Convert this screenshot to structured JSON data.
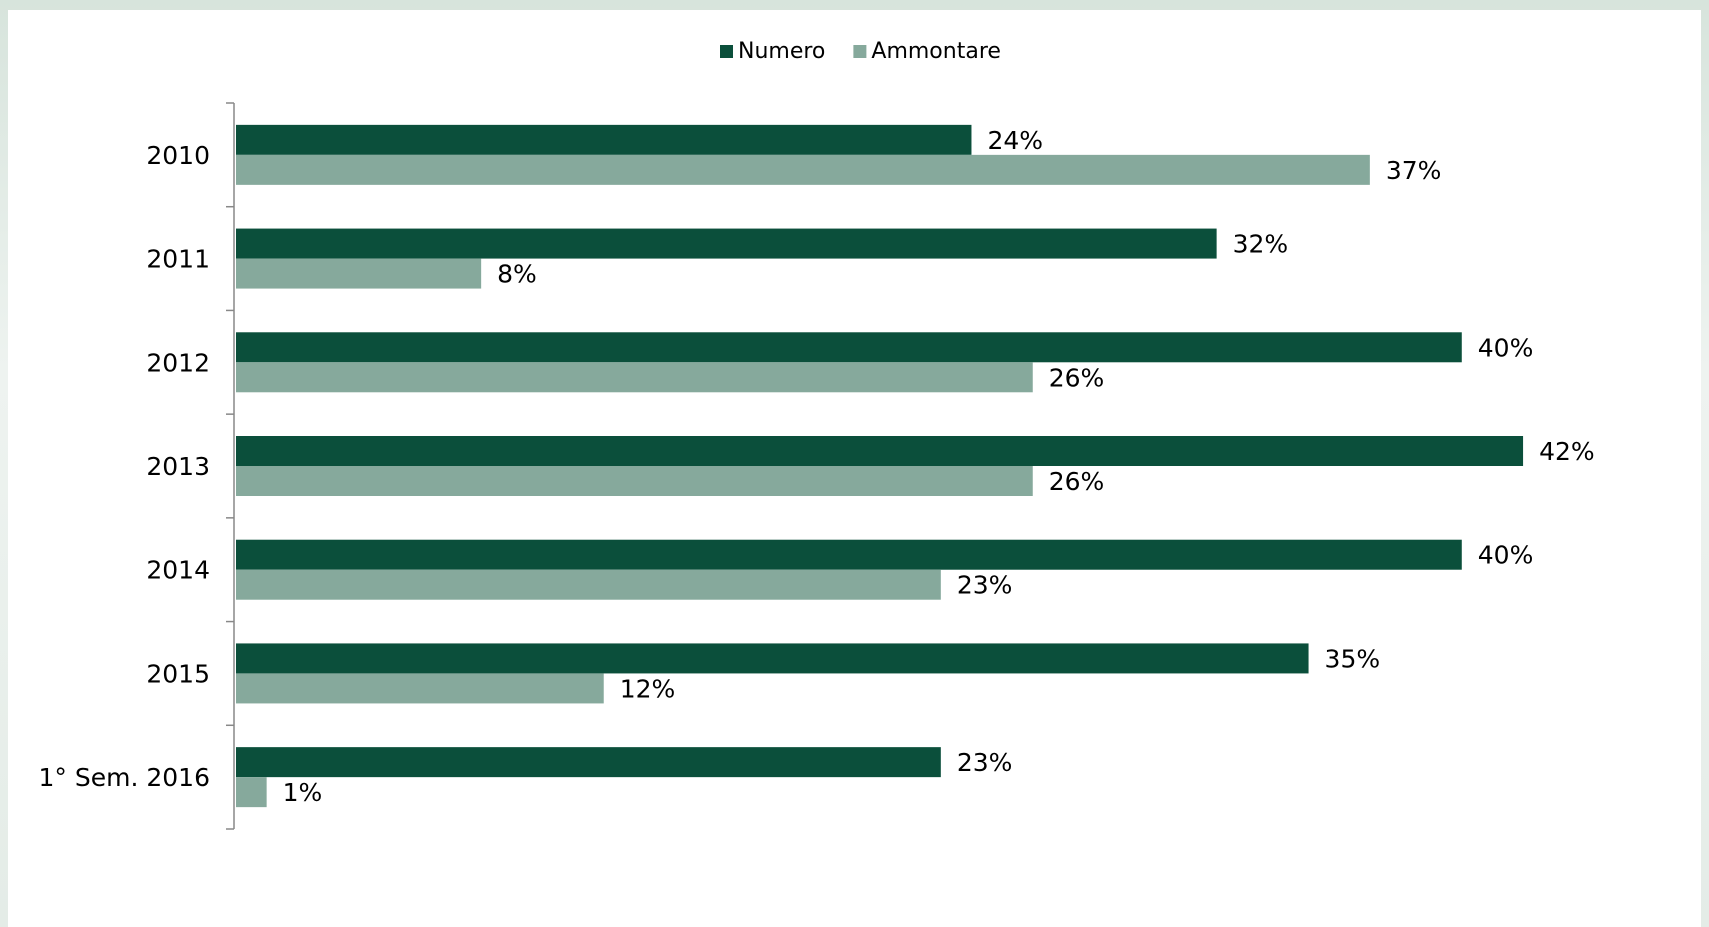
{
  "chart_data": {
    "type": "bar",
    "orientation": "horizontal",
    "categories": [
      "2010",
      "2011",
      "2012",
      "2013",
      "2014",
      "2015",
      "1° Sem. 2016"
    ],
    "series": [
      {
        "name": "Numero",
        "values": [
          24,
          32,
          40,
          42,
          40,
          35,
          23
        ],
        "labels": [
          "24%",
          "32%",
          "40%",
          "42%",
          "40%",
          "35%",
          "23%"
        ],
        "color": "#0b4f3b"
      },
      {
        "name": "Ammontare",
        "values": [
          37,
          8,
          26,
          26,
          23,
          12,
          1
        ],
        "labels": [
          "37%",
          "8%",
          "26%",
          "26%",
          "23%",
          "12%",
          "1%"
        ],
        "color": "#86a99c"
      }
    ],
    "xlim": [
      0,
      45
    ],
    "unit": "%",
    "legend_position": "top",
    "grid": false
  }
}
